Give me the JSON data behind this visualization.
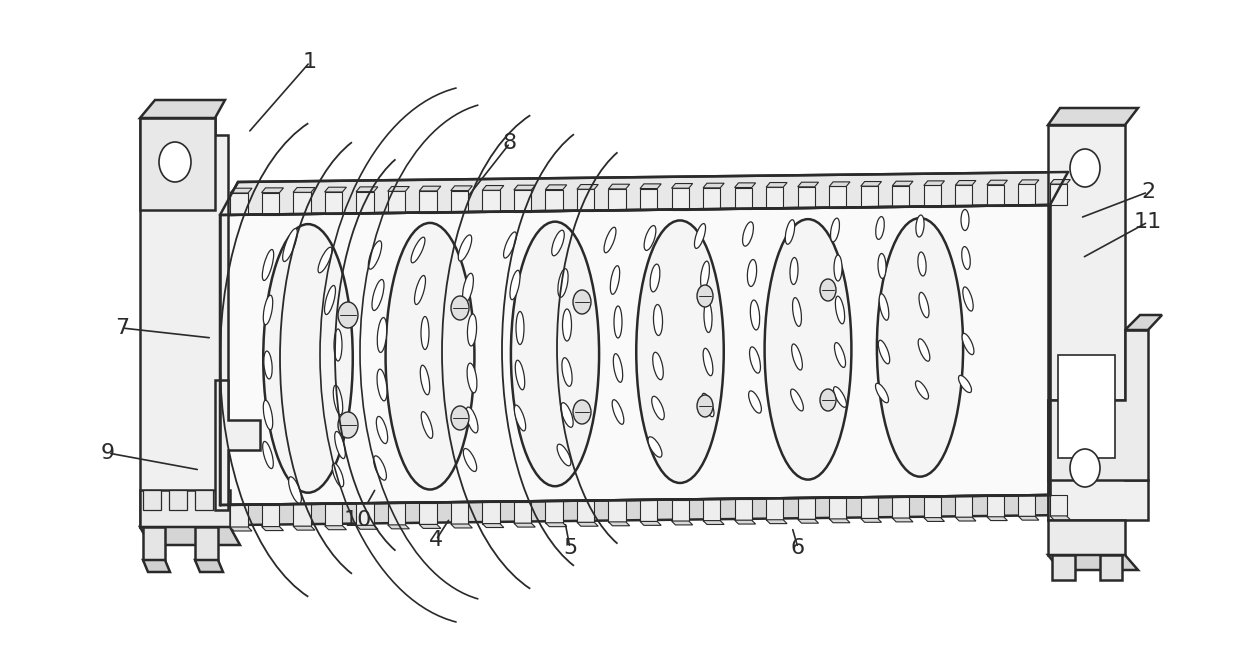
{
  "background_color": "#ffffff",
  "line_color": "#2a2a2a",
  "line_width": 1.3,
  "figsize": [
    12.4,
    6.68
  ],
  "dpi": 100,
  "label_fontsize": 16,
  "annotations": [
    [
      "1",
      310,
      62,
      248,
      133
    ],
    [
      "2",
      1148,
      192,
      1080,
      218
    ],
    [
      "7",
      122,
      328,
      212,
      338
    ],
    [
      "8",
      510,
      143,
      455,
      213
    ],
    [
      "9",
      108,
      453,
      200,
      470
    ],
    [
      "10",
      358,
      520,
      376,
      488
    ],
    [
      "4",
      436,
      540,
      450,
      518
    ],
    [
      "5",
      570,
      548,
      565,
      522
    ],
    [
      "6",
      798,
      548,
      792,
      527
    ],
    [
      "11",
      1148,
      222,
      1082,
      258
    ]
  ],
  "lw_main": 1.4,
  "lw_thick": 1.8,
  "fc_light": "#f8f8f8",
  "fc_mid": "#eeeeee",
  "fc_dark": "#e0e0e0",
  "fc_darker": "#d0d0d0"
}
